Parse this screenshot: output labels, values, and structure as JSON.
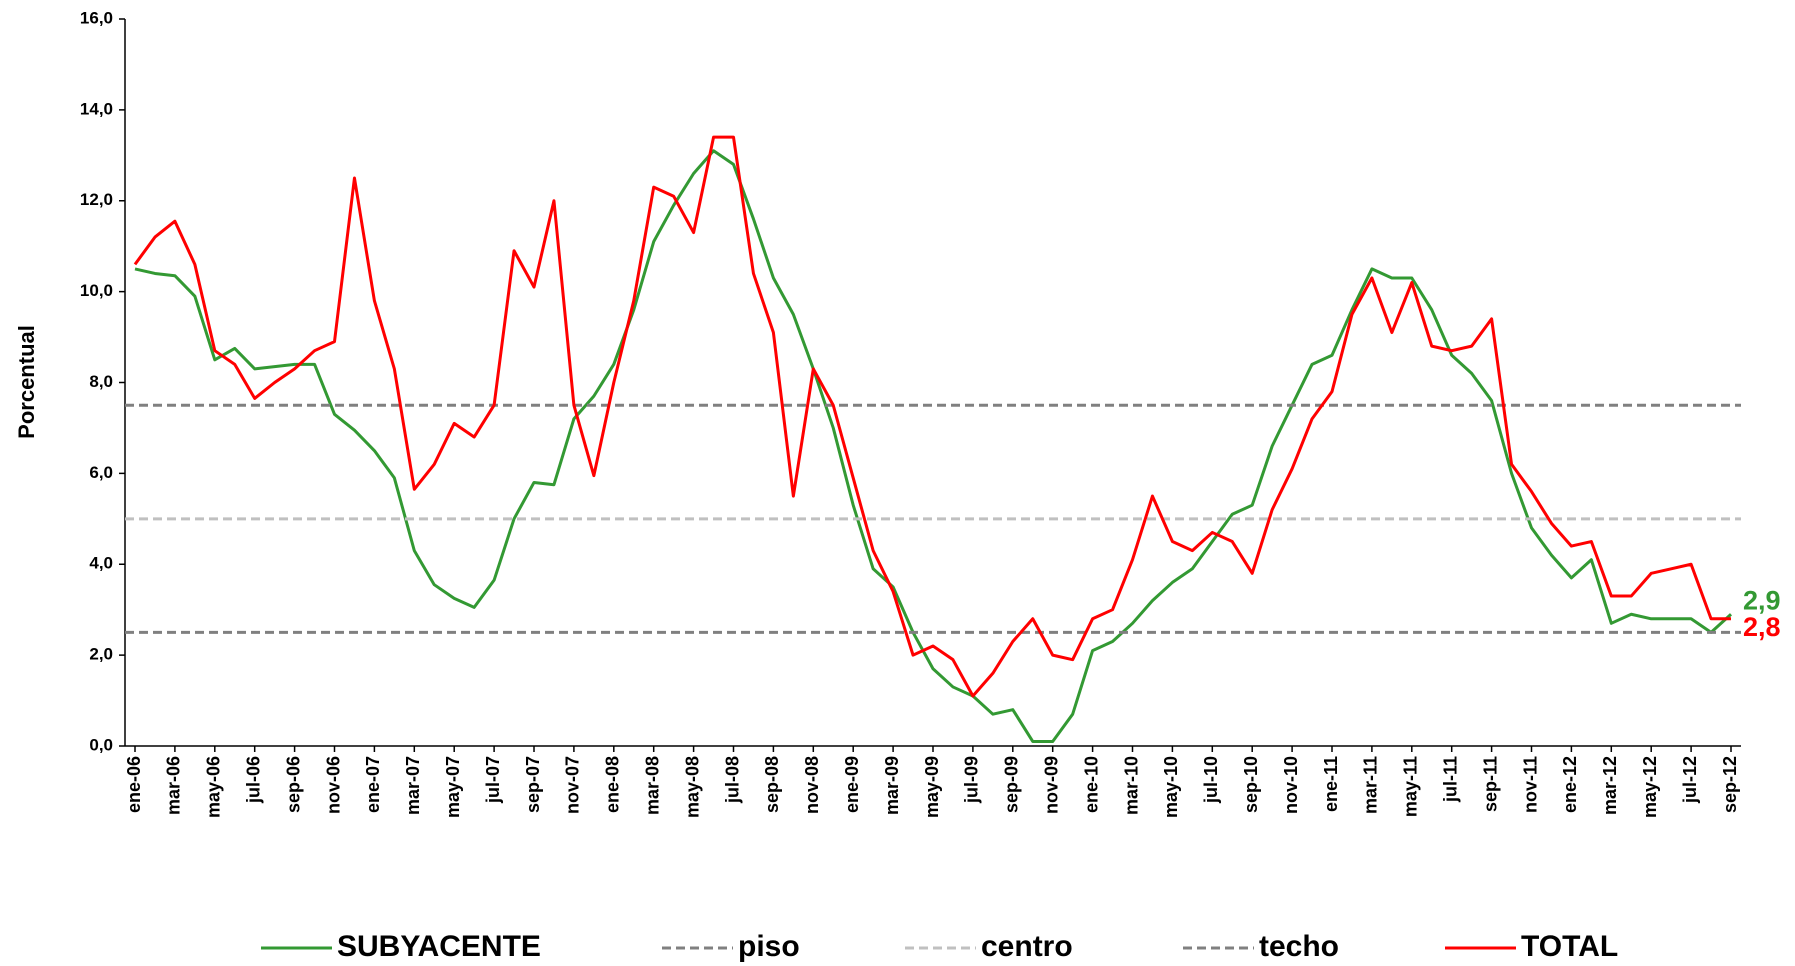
{
  "chart_data": {
    "type": "line",
    "y_label": "Porcentual",
    "ylim": [
      0,
      16
    ],
    "yticks": [
      {
        "value": 0,
        "label": "0,0"
      },
      {
        "value": 2,
        "label": "2,0"
      },
      {
        "value": 4,
        "label": "4,0"
      },
      {
        "value": 6,
        "label": "6,0"
      },
      {
        "value": 8,
        "label": "8,0"
      },
      {
        "value": 10,
        "label": "10,0"
      },
      {
        "value": 12,
        "label": "12,0"
      },
      {
        "value": 14,
        "label": "14,0"
      },
      {
        "value": 16,
        "label": "16,0"
      }
    ],
    "categories": [
      "ene-06",
      null,
      "mar-06",
      null,
      "may-06",
      null,
      "jul-06",
      null,
      "sep-06",
      null,
      "nov-06",
      null,
      "ene-07",
      null,
      "mar-07",
      null,
      "may-07",
      null,
      "jul-07",
      null,
      "sep-07",
      null,
      "nov-07",
      null,
      "ene-08",
      null,
      "mar-08",
      null,
      "may-08",
      null,
      "jul-08",
      null,
      "sep-08",
      null,
      "nov-08",
      null,
      "ene-09",
      null,
      "mar-09",
      null,
      "may-09",
      null,
      "jul-09",
      null,
      "sep-09",
      null,
      "nov-09",
      null,
      "ene-10",
      null,
      "mar-10",
      null,
      "may-10",
      null,
      "jul-10",
      null,
      "sep-10",
      null,
      "nov-10",
      null,
      "ene-11",
      null,
      "mar-11",
      null,
      "may-11",
      null,
      "jul-11",
      null,
      "sep-11",
      null,
      "nov-11",
      null,
      "ene-12",
      null,
      "mar-12",
      null,
      "may-12",
      null,
      "jul-12",
      null,
      "sep-12"
    ],
    "series": [
      {
        "name": "SUBYACENTE",
        "color": "#339933",
        "values": [
          10.5,
          10.4,
          10.35,
          9.9,
          8.5,
          8.75,
          8.3,
          8.35,
          8.4,
          8.4,
          7.3,
          6.95,
          6.5,
          5.9,
          4.3,
          3.55,
          3.25,
          3.05,
          3.65,
          5.0,
          5.8,
          5.75,
          7.2,
          7.7,
          8.4,
          9.6,
          11.1,
          11.9,
          12.6,
          13.1,
          12.8,
          11.6,
          10.3,
          9.5,
          8.3,
          7.0,
          5.3,
          3.9,
          3.5,
          2.5,
          1.7,
          1.3,
          1.1,
          0.7,
          0.8,
          0.1,
          0.1,
          0.7,
          2.1,
          2.3,
          2.7,
          3.2,
          3.6,
          3.9,
          4.5,
          5.1,
          5.3,
          6.6,
          7.5,
          8.4,
          8.6,
          9.6,
          10.5,
          10.3,
          10.3,
          9.6,
          8.6,
          8.2,
          7.6,
          6.0,
          4.8,
          4.2,
          3.7,
          4.1,
          2.7,
          2.9,
          2.8,
          2.8,
          2.8,
          2.5,
          2.9
        ],
        "value_labels": [
          null,
          null,
          null,
          null,
          null,
          null,
          null,
          null,
          null,
          null,
          null,
          null,
          null,
          null,
          null,
          null,
          null,
          null,
          null,
          null,
          null,
          null,
          null,
          null,
          null,
          null,
          null,
          null,
          null,
          null,
          null,
          null,
          null,
          null,
          null,
          null,
          null,
          null,
          null,
          null,
          null,
          null,
          null,
          null,
          null,
          null,
          null,
          null,
          null,
          null,
          null,
          null,
          null,
          null,
          null,
          null,
          null,
          null,
          null,
          null,
          null,
          null,
          null,
          null,
          null,
          null,
          null,
          null,
          null,
          null,
          null,
          null,
          null,
          null,
          null,
          null,
          null,
          null,
          null,
          null,
          "2,9"
        ]
      },
      {
        "name": "piso",
        "color": "#808080",
        "dash": true,
        "value": 2.5
      },
      {
        "name": "centro",
        "color": "#c0c0c0",
        "dash": true,
        "value": 5
      },
      {
        "name": "techo",
        "color": "#808080",
        "dash": true,
        "value": 7.5
      },
      {
        "name": "TOTAL",
        "color": "#ff0000",
        "values": [
          10.6,
          11.2,
          11.55,
          10.6,
          8.7,
          8.4,
          7.65,
          8.0,
          8.3,
          8.7,
          8.9,
          12.5,
          9.8,
          8.3,
          5.65,
          6.2,
          7.1,
          6.8,
          7.5,
          10.9,
          10.1,
          12.0,
          7.5,
          5.95,
          8.0,
          9.8,
          12.3,
          12.1,
          11.3,
          13.4,
          13.4,
          10.4,
          9.1,
          5.5,
          8.3,
          7.5,
          5.9,
          4.3,
          3.4,
          2.0,
          2.2,
          1.9,
          1.1,
          1.6,
          2.3,
          2.8,
          2.0,
          1.9,
          2.8,
          3.0,
          4.1,
          5.5,
          4.5,
          4.3,
          4.7,
          4.5,
          3.8,
          5.2,
          6.1,
          7.2,
          7.8,
          9.5,
          10.3,
          9.1,
          10.2,
          8.8,
          8.7,
          8.8,
          9.4,
          6.2,
          5.6,
          4.9,
          4.4,
          4.5,
          3.3,
          3.3,
          3.8,
          3.9,
          4.0,
          2.8,
          2.8
        ],
        "value_labels": [
          null,
          null,
          null,
          null,
          null,
          null,
          null,
          null,
          null,
          null,
          null,
          null,
          null,
          null,
          null,
          null,
          null,
          null,
          null,
          null,
          null,
          null,
          null,
          null,
          null,
          null,
          null,
          null,
          null,
          null,
          null,
          null,
          null,
          null,
          null,
          null,
          null,
          null,
          null,
          null,
          null,
          null,
          null,
          null,
          null,
          null,
          null,
          null,
          null,
          null,
          null,
          null,
          null,
          null,
          null,
          null,
          null,
          null,
          null,
          null,
          null,
          null,
          null,
          null,
          null,
          null,
          null,
          null,
          null,
          null,
          null,
          null,
          null,
          null,
          null,
          null,
          null,
          null,
          null,
          null,
          "2,8"
        ]
      }
    ]
  }
}
